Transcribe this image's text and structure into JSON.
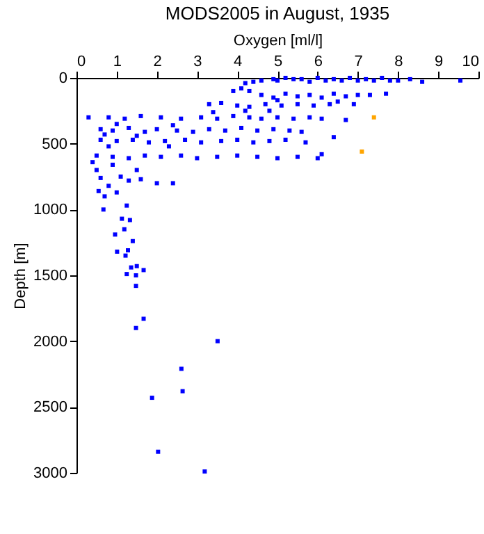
{
  "chart_data": {
    "type": "scatter",
    "title": "MODS2005 in August, 1935",
    "xlabel": "Oxygen [ml/l]",
    "ylabel": "Depth [m]",
    "xlim": [
      0,
      10
    ],
    "xticks": [
      0,
      1,
      2,
      3,
      4,
      5,
      6,
      7,
      8,
      9,
      10
    ],
    "ylim": [
      3000,
      0
    ],
    "yticks": [
      0,
      500,
      1000,
      1500,
      2000,
      2500,
      3000
    ],
    "marker": "square",
    "grid": false,
    "legend": false,
    "series": [
      {
        "color": "#0000ff",
        "x": [
          4.2,
          4.4,
          4.6,
          4.9,
          5.0,
          5.2,
          5.4,
          5.6,
          5.8,
          6.0,
          6.2,
          6.4,
          6.6,
          6.8,
          7.0,
          7.2,
          7.4,
          7.6,
          7.8,
          8.0,
          8.3,
          8.6,
          9.55,
          3.9,
          4.1,
          4.3,
          4.6,
          4.9,
          5.2,
          5.5,
          5.8,
          6.1,
          6.4,
          6.7,
          7.0,
          7.3,
          7.7,
          5.0,
          6.5,
          3.3,
          3.6,
          4.0,
          4.3,
          4.7,
          5.1,
          5.5,
          5.9,
          6.3,
          6.9,
          4.2,
          0.3,
          0.8,
          1.2,
          1.6,
          2.1,
          2.6,
          3.1,
          3.5,
          3.9,
          4.3,
          4.6,
          5.0,
          5.4,
          5.8,
          6.1,
          6.7,
          1.0,
          2.4,
          4.8,
          3.4,
          0.6,
          0.9,
          1.3,
          1.7,
          2.0,
          2.5,
          2.9,
          3.3,
          3.7,
          4.1,
          4.5,
          4.9,
          5.3,
          5.6,
          0.7,
          1.5,
          0.6,
          1.0,
          1.4,
          1.8,
          2.2,
          2.7,
          3.1,
          3.6,
          4.0,
          4.4,
          4.8,
          5.2,
          5.7,
          6.4,
          0.8,
          2.3,
          0.5,
          0.9,
          1.3,
          1.7,
          2.1,
          2.6,
          3.0,
          3.5,
          4.0,
          4.5,
          5.0,
          5.5,
          6.1,
          6.0,
          0.4,
          0.5,
          0.9,
          0.6,
          1.1,
          0.8,
          0.55,
          1.3,
          1.6,
          2.0,
          2.4,
          1.0,
          0.7,
          1.5,
          0.67,
          1.25,
          1.13,
          1.33,
          0.96,
          1.19,
          1.4,
          1.01,
          1.22,
          1.28,
          1.36,
          1.5,
          1.25,
          1.48,
          1.67,
          1.48,
          1.67,
          1.48,
          3.51,
          2.61,
          2.64,
          1.88,
          2.03,
          3.19
        ],
        "values": [
          40,
          30,
          20,
          10,
          20,
          0,
          10,
          10,
          30,
          0,
          20,
          10,
          20,
          0,
          20,
          10,
          20,
          0,
          20,
          20,
          10,
          30,
          20,
          100,
          80,
          100,
          130,
          150,
          120,
          140,
          130,
          150,
          120,
          140,
          130,
          130,
          120,
          170,
          180,
          200,
          190,
          210,
          220,
          200,
          210,
          200,
          210,
          200,
          200,
          250,
          300,
          300,
          310,
          290,
          300,
          310,
          300,
          310,
          290,
          300,
          310,
          300,
          310,
          300,
          310,
          320,
          350,
          360,
          250,
          260,
          390,
          400,
          380,
          410,
          390,
          400,
          410,
          390,
          400,
          380,
          400,
          390,
          400,
          410,
          430,
          440,
          470,
          480,
          470,
          490,
          480,
          470,
          490,
          480,
          470,
          490,
          480,
          470,
          490,
          450,
          520,
          520,
          590,
          600,
          610,
          590,
          600,
          590,
          610,
          600,
          590,
          600,
          610,
          600,
          580,
          610,
          640,
          700,
          660,
          760,
          750,
          820,
          860,
          780,
          770,
          800,
          800,
          870,
          900,
          700,
          1000,
          970,
          1070,
          1080,
          1190,
          1150,
          1240,
          1320,
          1350,
          1310,
          1440,
          1430,
          1490,
          1500,
          1460,
          1580,
          1830,
          1900,
          2000,
          2210,
          2380,
          2430,
          2840,
          2990
        ]
      },
      {
        "color": "#ffa500",
        "x": [
          7.4,
          7.1
        ],
        "values": [
          300,
          560
        ]
      }
    ]
  }
}
